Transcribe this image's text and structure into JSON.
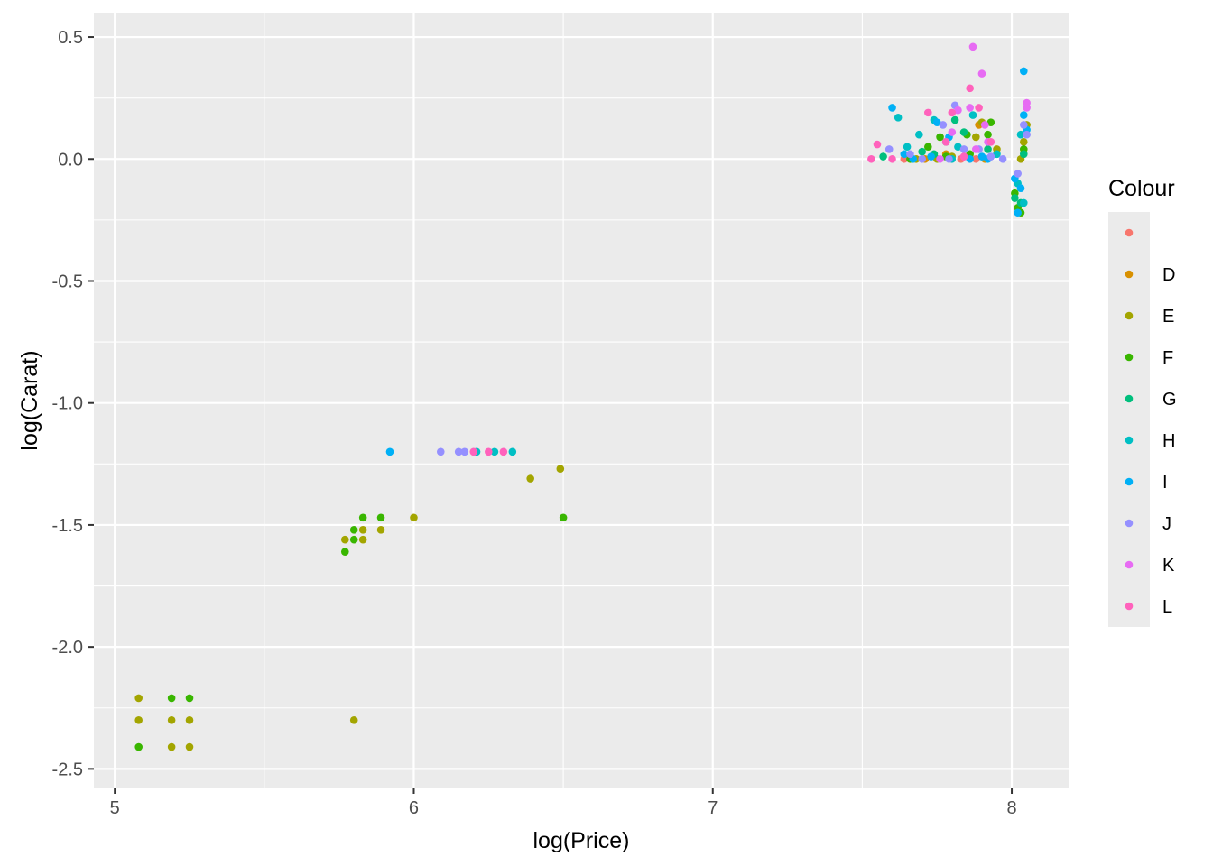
{
  "chart_data": {
    "type": "scatter",
    "title": "",
    "xlabel": "log(Price)",
    "ylabel": "log(Carat)",
    "xlim": [
      4.93,
      8.19
    ],
    "ylim": [
      -2.58,
      0.6
    ],
    "x_ticks": [
      5,
      6,
      7,
      8
    ],
    "x_tick_labels": [
      "5",
      "6",
      "7",
      "8"
    ],
    "y_ticks": [
      -2.5,
      -2.0,
      -1.5,
      -1.0,
      -0.5,
      0.0,
      0.5
    ],
    "y_tick_labels": [
      "-2.5",
      "-2.0",
      "-1.5",
      "-1.0",
      "-0.5",
      "0.0",
      "0.5"
    ],
    "grid": true,
    "legend": {
      "title": "Colour",
      "placement": "right"
    },
    "series": [
      {
        "name": "",
        "color": "#F8766D",
        "points": [
          [
            7.83,
            0.0
          ],
          [
            7.88,
            0.0
          ],
          [
            7.64,
            0.0
          ]
        ]
      },
      {
        "name": "D",
        "color": "#D89000",
        "points": [
          [
            7.89,
            0.14
          ],
          [
            7.91,
            0.0
          ],
          [
            7.78,
            0.02
          ],
          [
            7.71,
            0.0
          ]
        ]
      },
      {
        "name": "E",
        "color": "#A3A500",
        "points": [
          [
            5.08,
            -2.21
          ],
          [
            5.08,
            -2.3
          ],
          [
            5.19,
            -2.3
          ],
          [
            5.19,
            -2.41
          ],
          [
            5.25,
            -2.3
          ],
          [
            5.25,
            -2.41
          ],
          [
            5.77,
            -1.56
          ],
          [
            5.83,
            -1.52
          ],
          [
            5.83,
            -1.56
          ],
          [
            5.89,
            -1.52
          ],
          [
            5.8,
            -2.3
          ],
          [
            6.0,
            -1.47
          ],
          [
            6.39,
            -1.31
          ],
          [
            6.49,
            -1.27
          ],
          [
            7.75,
            0.0
          ],
          [
            7.8,
            0.01
          ],
          [
            7.9,
            0.15
          ],
          [
            8.05,
            0.14
          ],
          [
            8.04,
            0.07
          ],
          [
            7.95,
            0.04
          ],
          [
            7.68,
            0.0
          ],
          [
            7.88,
            0.09
          ],
          [
            8.03,
            0.0
          ]
        ]
      },
      {
        "name": "F",
        "color": "#39B600",
        "points": [
          [
            5.08,
            -2.41
          ],
          [
            5.19,
            -2.21
          ],
          [
            5.25,
            -2.21
          ],
          [
            5.77,
            -1.61
          ],
          [
            5.8,
            -1.52
          ],
          [
            5.8,
            -1.56
          ],
          [
            5.83,
            -1.47
          ],
          [
            5.89,
            -1.47
          ],
          [
            6.5,
            -1.47
          ],
          [
            7.72,
            0.05
          ],
          [
            7.76,
            0.09
          ],
          [
            7.85,
            0.1
          ],
          [
            7.93,
            0.15
          ],
          [
            7.92,
            0.1
          ],
          [
            8.02,
            -0.2
          ],
          [
            8.01,
            -0.14
          ],
          [
            8.04,
            0.04
          ],
          [
            7.78,
            0.01
          ],
          [
            7.66,
            0.0
          ],
          [
            7.86,
            0.02
          ],
          [
            8.03,
            -0.22
          ]
        ]
      },
      {
        "name": "G",
        "color": "#00BF7D",
        "points": [
          [
            7.57,
            0.01
          ],
          [
            7.7,
            0.03
          ],
          [
            7.78,
            0.07
          ],
          [
            7.84,
            0.11
          ],
          [
            7.92,
            0.04
          ],
          [
            8.01,
            -0.16
          ],
          [
            8.03,
            -0.18
          ],
          [
            8.04,
            0.02
          ],
          [
            7.74,
            0.02
          ],
          [
            7.81,
            0.16
          ]
        ]
      },
      {
        "name": "H",
        "color": "#00BFC4",
        "points": [
          [
            7.62,
            0.17
          ],
          [
            7.65,
            0.05
          ],
          [
            7.74,
            0.16
          ],
          [
            7.82,
            0.05
          ],
          [
            7.87,
            0.18
          ],
          [
            7.95,
            0.02
          ],
          [
            8.02,
            -0.1
          ],
          [
            8.04,
            -0.18
          ],
          [
            6.21,
            -1.2
          ],
          [
            6.27,
            -1.2
          ],
          [
            6.33,
            -1.2
          ],
          [
            7.69,
            0.1
          ],
          [
            7.8,
            0.0
          ],
          [
            8.03,
            0.1
          ]
        ]
      },
      {
        "name": "I",
        "color": "#00B0F6",
        "points": [
          [
            5.92,
            -1.2
          ],
          [
            7.6,
            0.21
          ],
          [
            7.64,
            0.02
          ],
          [
            7.73,
            0.01
          ],
          [
            7.79,
            0.09
          ],
          [
            7.86,
            0.0
          ],
          [
            7.9,
            0.01
          ],
          [
            8.01,
            -0.08
          ],
          [
            8.03,
            -0.12
          ],
          [
            8.04,
            0.36
          ],
          [
            8.04,
            0.18
          ],
          [
            8.05,
            0.12
          ],
          [
            7.67,
            0.0
          ],
          [
            7.75,
            0.15
          ],
          [
            7.92,
            0.0
          ],
          [
            8.02,
            -0.22
          ]
        ]
      },
      {
        "name": "J",
        "color": "#9590FF",
        "points": [
          [
            6.09,
            -1.2
          ],
          [
            6.15,
            -1.2
          ],
          [
            6.17,
            -1.2
          ],
          [
            7.59,
            0.04
          ],
          [
            7.66,
            0.02
          ],
          [
            7.77,
            0.14
          ],
          [
            7.81,
            0.22
          ],
          [
            7.84,
            0.04
          ],
          [
            7.89,
            0.04
          ],
          [
            7.97,
            0.0
          ],
          [
            8.04,
            0.14
          ],
          [
            8.05,
            0.1
          ],
          [
            7.7,
            0.0
          ],
          [
            7.79,
            0.0
          ],
          [
            8.02,
            -0.06
          ],
          [
            7.93,
            0.01
          ]
        ]
      },
      {
        "name": "K",
        "color": "#E76BF3",
        "points": [
          [
            7.87,
            0.46
          ],
          [
            7.9,
            0.35
          ],
          [
            7.82,
            0.2
          ],
          [
            7.86,
            0.21
          ],
          [
            7.91,
            0.14
          ],
          [
            8.05,
            0.23
          ],
          [
            8.05,
            0.21
          ],
          [
            7.76,
            0.0
          ],
          [
            7.88,
            0.04
          ],
          [
            7.8,
            0.11
          ],
          [
            7.92,
            0.07
          ]
        ]
      },
      {
        "name": "L",
        "color": "#FF62BC",
        "points": [
          [
            7.53,
            0.0
          ],
          [
            7.55,
            0.06
          ],
          [
            7.72,
            0.19
          ],
          [
            7.8,
            0.19
          ],
          [
            7.86,
            0.29
          ],
          [
            7.89,
            0.21
          ],
          [
            7.93,
            0.07
          ],
          [
            6.2,
            -1.2
          ],
          [
            6.25,
            -1.2
          ],
          [
            6.3,
            -1.2
          ],
          [
            7.6,
            0.0
          ],
          [
            7.78,
            0.07
          ],
          [
            7.84,
            0.01
          ]
        ]
      }
    ]
  }
}
